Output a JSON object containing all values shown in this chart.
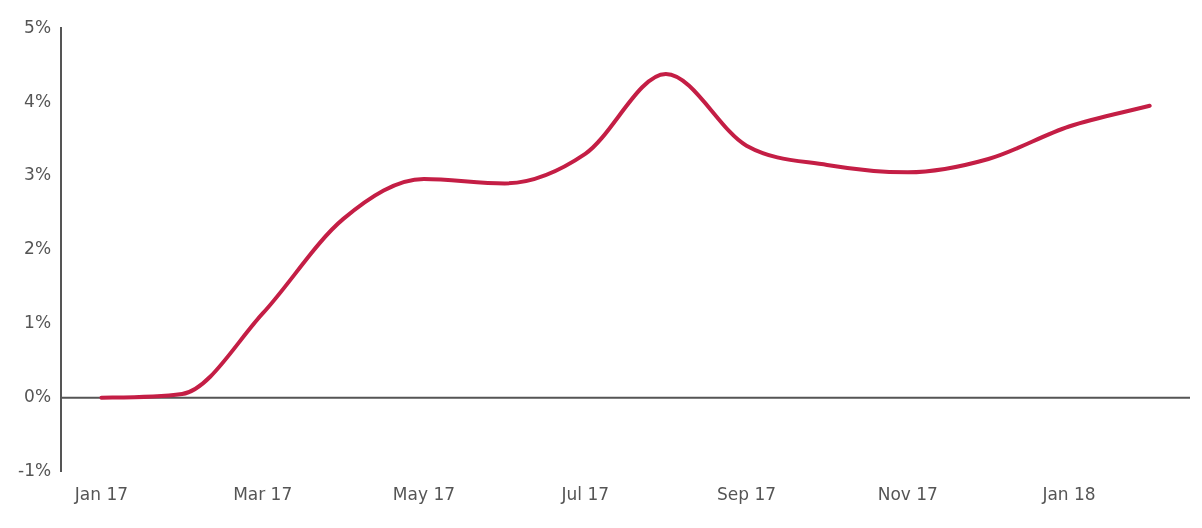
{
  "chart_data": {
    "type": "line",
    "categories": [
      "Jan 17",
      null,
      "Mar 17",
      null,
      "May 17",
      null,
      "Jul 17",
      null,
      "Sep 17",
      null,
      "Nov 17",
      null,
      "Jan 18",
      null
    ],
    "series": [
      {
        "color": "#c41e45",
        "values": [
          0,
          0.05,
          1.14,
          2.42,
          2.96,
          2.9,
          3.3,
          4.38,
          3.41,
          3.15,
          3.05,
          3.23,
          3.67,
          3.95
        ]
      }
    ],
    "ylim": [
      -1,
      5
    ],
    "yticks": [
      {
        "value": -1,
        "label": "-1%"
      },
      {
        "value": 0,
        "label": "0%"
      },
      {
        "value": 1,
        "label": "1%"
      },
      {
        "value": 2,
        "label": "2%"
      },
      {
        "value": 3,
        "label": "3%"
      },
      {
        "value": 4,
        "label": "4%"
      },
      {
        "value": 5,
        "label": "5%"
      }
    ],
    "ref_lines": [
      {
        "axis": "y",
        "value": 0,
        "color": "#555555"
      }
    ],
    "grid": false,
    "legend": false,
    "marker": "none",
    "line_style": "solid"
  }
}
